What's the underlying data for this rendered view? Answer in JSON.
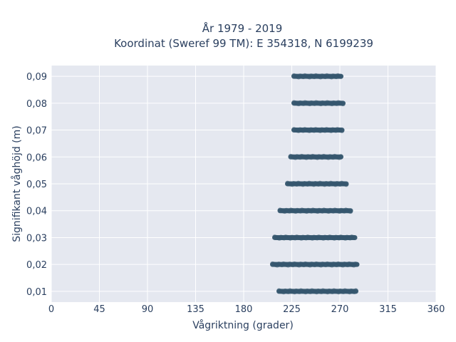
{
  "chart_data": {
    "type": "scatter",
    "title_line1": "År 1979 - 2019",
    "title_line2": "Koordinat (Sweref 99 TM): E 354318, N 6199239",
    "xlabel": "Vågriktning (grader)",
    "ylabel": "Signifikant våghöjd (m)",
    "xlim": [
      0,
      360
    ],
    "ylim": [
      0.006,
      0.094
    ],
    "x_ticks": [
      0,
      45,
      90,
      135,
      180,
      225,
      270,
      315,
      360
    ],
    "x_tick_labels": [
      "0",
      "45",
      "90",
      "135",
      "180",
      "225",
      "270",
      "315",
      "360"
    ],
    "y_ticks": [
      0.01,
      0.02,
      0.03,
      0.04,
      0.05,
      0.06,
      0.07,
      0.08,
      0.09
    ],
    "y_tick_labels": [
      "0,01",
      "0,02",
      "0,03",
      "0,04",
      "0,05",
      "0,06",
      "0,07",
      "0,08",
      "0,09"
    ],
    "grid": true,
    "marker_color": "#34566e",
    "plot_bg": "#e5e8f0",
    "bands": [
      {
        "y": 0.01,
        "x_min": 213,
        "x_max": 285
      },
      {
        "y": 0.02,
        "x_min": 207,
        "x_max": 286
      },
      {
        "y": 0.03,
        "x_min": 209,
        "x_max": 284
      },
      {
        "y": 0.04,
        "x_min": 214,
        "x_max": 280
      },
      {
        "y": 0.05,
        "x_min": 221,
        "x_max": 276
      },
      {
        "y": 0.06,
        "x_min": 224,
        "x_max": 271
      },
      {
        "y": 0.07,
        "x_min": 227,
        "x_max": 272
      },
      {
        "y": 0.08,
        "x_min": 227,
        "x_max": 273
      },
      {
        "y": 0.09,
        "x_min": 227,
        "x_max": 271
      }
    ]
  }
}
